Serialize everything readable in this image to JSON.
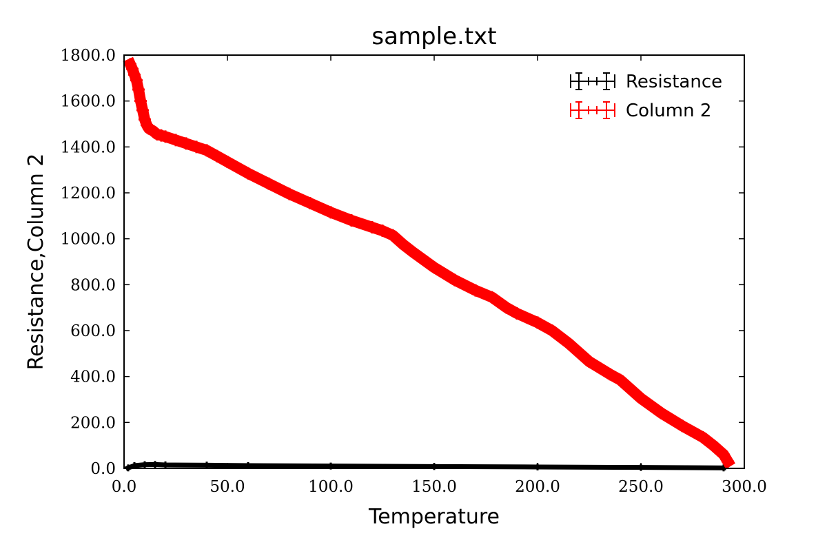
{
  "chart_data": {
    "type": "line",
    "title": "sample.txt",
    "xlabel": "Temperature",
    "ylabel": "Resistance,Column 2",
    "xlim": [
      0,
      300
    ],
    "ylim": [
      0,
      1800
    ],
    "xticks": [
      0,
      50,
      100,
      150,
      200,
      250,
      300
    ],
    "yticks": [
      0,
      200,
      400,
      600,
      800,
      1000,
      1200,
      1400,
      1600,
      1800
    ],
    "xtick_labels": [
      "0.0",
      "50.0",
      "100.0",
      "150.0",
      "200.0",
      "250.0",
      "300.0"
    ],
    "ytick_labels": [
      "0.0",
      "200.0",
      "400.0",
      "600.0",
      "800.0",
      "1000.0",
      "1200.0",
      "1400.0",
      "1600.0",
      "1800.0"
    ],
    "grid": false,
    "legend_position": "top-right",
    "series": [
      {
        "name": "Resistance",
        "color": "#000000",
        "marker": "errorbar",
        "x": [
          2,
          5,
          10,
          15,
          20,
          40,
          60,
          100,
          150,
          200,
          250,
          290
        ],
        "y": [
          2,
          12,
          16,
          17,
          15,
          14,
          12,
          10,
          8,
          6,
          4,
          2
        ]
      },
      {
        "name": "Column 2",
        "color": "#ff0000",
        "marker": "errorbar",
        "x": [
          3,
          4,
          5,
          6,
          7,
          8,
          9,
          10,
          11,
          12,
          14,
          16,
          18,
          20,
          25,
          30,
          35,
          40,
          45,
          50,
          60,
          70,
          80,
          90,
          100,
          110,
          120,
          125,
          130,
          135,
          140,
          150,
          160,
          170,
          178,
          185,
          190,
          200,
          207,
          215,
          225,
          235,
          240,
          250,
          260,
          270,
          280,
          285,
          290,
          292
        ],
        "y": [
          1760,
          1740,
          1715,
          1690,
          1650,
          1600,
          1560,
          1520,
          1495,
          1480,
          1470,
          1455,
          1450,
          1445,
          1430,
          1415,
          1400,
          1385,
          1360,
          1335,
          1285,
          1240,
          1195,
          1155,
          1115,
          1080,
          1050,
          1035,
          1015,
          975,
          940,
          875,
          820,
          775,
          745,
          700,
          675,
          635,
          600,
          545,
          465,
          410,
          385,
          305,
          240,
          185,
          135,
          100,
          60,
          30
        ]
      }
    ]
  }
}
